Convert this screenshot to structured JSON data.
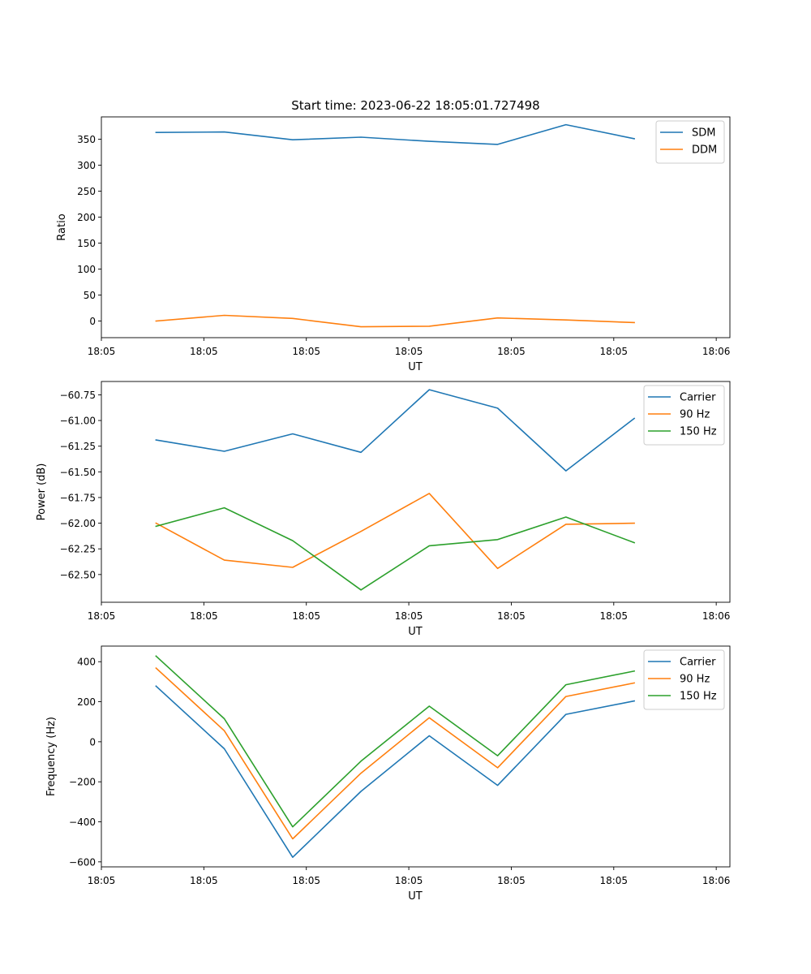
{
  "figure": {
    "title": "Start time: 2023-06-22 18:05:01.727498"
  },
  "colors": {
    "blue": "#1f77b4",
    "orange": "#ff7f0e",
    "green": "#2ca02c"
  },
  "chart_data": [
    {
      "type": "line",
      "title": "Start time: 2023-06-22 18:05:01.727498",
      "xlabel": "UT",
      "ylabel": "Ratio",
      "x_tick_labels": [
        "18:05",
        "18:05",
        "18:05",
        "18:05",
        "18:05",
        "18:05",
        "18:06"
      ],
      "y_ticks": [
        0,
        50,
        100,
        150,
        200,
        250,
        300,
        350
      ],
      "ylim": [
        -32,
        393
      ],
      "x_samples": [
        1,
        2,
        3,
        4,
        5,
        6,
        7,
        8
      ],
      "xlim": [
        0.2,
        9.4
      ],
      "x_tick_positions": [
        0.2,
        1.7,
        3.2,
        4.7,
        6.2,
        7.7,
        9.2
      ],
      "grid": false,
      "legend_position": "top-right",
      "series": [
        {
          "name": "SDM",
          "color": "#1f77b4",
          "values": [
            363,
            364,
            349,
            354,
            346,
            340,
            378,
            351
          ]
        },
        {
          "name": "DDM",
          "color": "#ff7f0e",
          "values": [
            0,
            11,
            5,
            -11,
            -10,
            6,
            2,
            -3
          ]
        }
      ]
    },
    {
      "type": "line",
      "xlabel": "UT",
      "ylabel": "Power (dB)",
      "x_tick_labels": [
        "18:05",
        "18:05",
        "18:05",
        "18:05",
        "18:05",
        "18:05",
        "18:06"
      ],
      "y_ticks": [
        -62.5,
        -62.25,
        -62.0,
        -61.75,
        -61.5,
        -61.25,
        -61.0,
        -60.75
      ],
      "y_tick_labels": [
        "−62.50",
        "−62.25",
        "−62.00",
        "−61.75",
        "−61.50",
        "−61.25",
        "−61.00",
        "−60.75"
      ],
      "ylim": [
        -62.77,
        -60.62
      ],
      "x_samples": [
        1,
        2,
        3,
        4,
        5,
        6,
        7,
        8
      ],
      "xlim": [
        0.2,
        9.4
      ],
      "x_tick_positions": [
        0.2,
        1.7,
        3.2,
        4.7,
        6.2,
        7.7,
        9.2
      ],
      "grid": false,
      "legend_position": "top-right",
      "series": [
        {
          "name": "Carrier",
          "color": "#1f77b4",
          "values": [
            -61.19,
            -61.3,
            -61.13,
            -61.31,
            -60.7,
            -60.88,
            -61.49,
            -60.98
          ]
        },
        {
          "name": "90 Hz",
          "color": "#ff7f0e",
          "values": [
            -62.0,
            -62.36,
            -62.43,
            -62.08,
            -61.71,
            -62.44,
            -62.01,
            -62.0
          ]
        },
        {
          "name": "150 Hz",
          "color": "#2ca02c",
          "values": [
            -62.03,
            -61.85,
            -62.17,
            -62.65,
            -62.22,
            -62.16,
            -61.94,
            -62.19
          ]
        }
      ]
    },
    {
      "type": "line",
      "xlabel": "UT",
      "ylabel": "Frequency (Hz)",
      "x_tick_labels": [
        "18:05",
        "18:05",
        "18:05",
        "18:05",
        "18:05",
        "18:05",
        "18:06"
      ],
      "y_ticks": [
        -600,
        -400,
        -200,
        0,
        200,
        400
      ],
      "y_tick_labels": [
        "−600",
        "−400",
        "−200",
        "0",
        "200",
        "400"
      ],
      "ylim": [
        -625,
        478
      ],
      "x_samples": [
        1,
        2,
        3,
        4,
        5,
        6,
        7,
        8
      ],
      "xlim": [
        0.2,
        9.4
      ],
      "x_tick_positions": [
        0.2,
        1.7,
        3.2,
        4.7,
        6.2,
        7.7,
        9.2
      ],
      "grid": false,
      "legend_position": "top-right",
      "series": [
        {
          "name": "Carrier",
          "color": "#1f77b4",
          "values": [
            278,
            -35,
            -577,
            -248,
            30,
            -218,
            137,
            204
          ]
        },
        {
          "name": "90 Hz",
          "color": "#ff7f0e",
          "values": [
            368,
            55,
            -485,
            -157,
            120,
            -130,
            226,
            294
          ]
        },
        {
          "name": "150 Hz",
          "color": "#2ca02c",
          "values": [
            428,
            115,
            -425,
            -97,
            178,
            -70,
            285,
            353
          ]
        }
      ]
    }
  ]
}
